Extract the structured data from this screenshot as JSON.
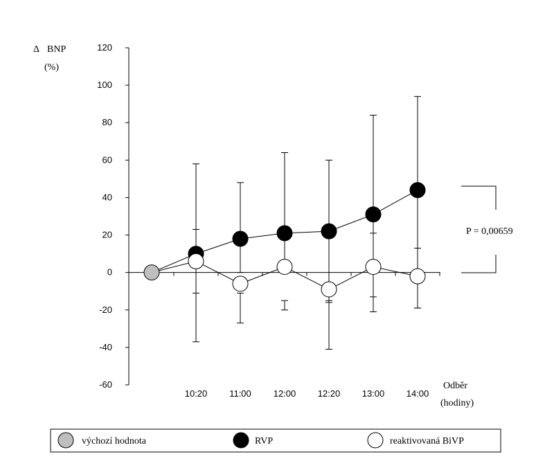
{
  "chart_data": {
    "type": "line",
    "ylabel_symbol": "Δ",
    "ylabel_name": "BNP",
    "ylabel_unit": "(%)",
    "xlabel_name": "Odběr",
    "xlabel_unit": "(hodiny)",
    "ylim": [
      -60,
      120
    ],
    "yticks": [
      120,
      100,
      80,
      60,
      40,
      20,
      0,
      -20,
      -40,
      -60
    ],
    "categories": [
      "",
      "10:20",
      "11:00",
      "12:00",
      "12:20",
      "13:00",
      "14:00"
    ],
    "baseline": {
      "name": "výchozí hodnota",
      "color": "#bfbfbf",
      "x_index": 0,
      "value": 0
    },
    "series": [
      {
        "name": "RVP",
        "color": "#000000",
        "values": [
          0,
          10,
          18,
          21,
          22,
          31,
          44
        ],
        "err_low": [
          null,
          -37,
          0,
          0,
          -16,
          -13,
          -19
        ],
        "err_high": [
          null,
          58,
          48,
          64,
          60,
          84,
          94
        ]
      },
      {
        "name": "reaktivovaná BiVP",
        "color": "#ffffff",
        "values": [
          0,
          6,
          -6,
          3,
          -9,
          3,
          -2
        ],
        "err_low": [
          null,
          -11,
          -27,
          -20,
          -41,
          -21,
          -19
        ],
        "err_high": [
          null,
          23,
          -11,
          -15,
          -15,
          21,
          13
        ]
      }
    ],
    "annotation": "P = 0,00659",
    "legend_placement": "bottom",
    "grid": false
  }
}
